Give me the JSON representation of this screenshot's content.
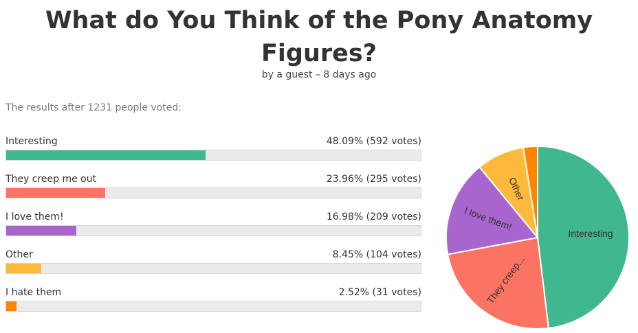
{
  "header": {
    "title_line1": "What do You Think of the Pony Anatomy",
    "title_line2": "Figures?",
    "subtitle": "by a guest – 8 days ago"
  },
  "summary": "The results after 1231 people voted:",
  "options": [
    {
      "label": "Interesting",
      "result": "48.09% (592 votes)",
      "percent": 48.09,
      "color": "#40b88f"
    },
    {
      "label": "They creep me out",
      "result": "23.96% (295 votes)",
      "percent": 23.96,
      "color": "#fb7463"
    },
    {
      "label": "I love them!",
      "result": "16.98% (209 votes)",
      "percent": 16.98,
      "color": "#a865ce"
    },
    {
      "label": "Other",
      "result": "8.45% (104 votes)",
      "percent": 8.45,
      "color": "#fdb93c"
    },
    {
      "label": "I hate them",
      "result": "2.52% (31 votes)",
      "percent": 2.52,
      "color": "#fe8500"
    }
  ],
  "chart_data": {
    "type": "pie",
    "total_votes": 1231,
    "categories": [
      "Interesting",
      "They creep me out",
      "I love them!",
      "Other",
      "I hate them"
    ],
    "values": [
      592,
      295,
      209,
      104,
      31
    ],
    "percentages": [
      48.09,
      23.96,
      16.98,
      8.45,
      2.52
    ],
    "slice_labels": [
      "Interesting",
      "They creep...",
      "I love them!",
      "Other",
      ""
    ],
    "colors": [
      "#40b88f",
      "#fb7463",
      "#a865ce",
      "#fdb93c",
      "#fe8500"
    ]
  }
}
